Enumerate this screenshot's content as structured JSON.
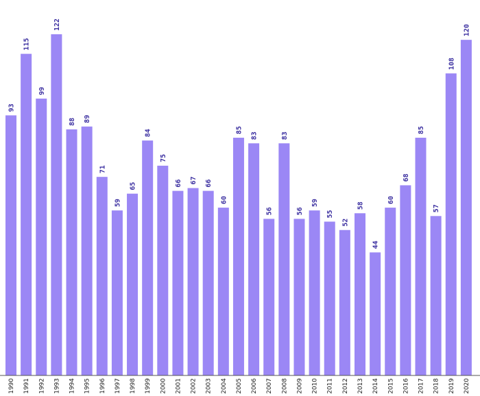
{
  "chart_data": {
    "type": "bar",
    "categories": [
      "1990",
      "1991",
      "1992",
      "1993",
      "1994",
      "1995",
      "1996",
      "1997",
      "1998",
      "1999",
      "2000",
      "2001",
      "2002",
      "2003",
      "2004",
      "2005",
      "2006",
      "2007",
      "2008",
      "2009",
      "2010",
      "2011",
      "2012",
      "2013",
      "2014",
      "2015",
      "2016",
      "2017",
      "2018",
      "2019",
      "2020"
    ],
    "values": [
      93,
      115,
      99,
      122,
      88,
      89,
      71,
      59,
      65,
      84,
      75,
      66,
      67,
      66,
      60,
      85,
      83,
      56,
      83,
      56,
      59,
      55,
      52,
      58,
      44,
      60,
      68,
      85,
      57,
      108,
      120
    ],
    "title": "",
    "xlabel": "",
    "ylabel": "",
    "ylim": [
      0,
      127
    ],
    "grid": false,
    "legend": "none",
    "data_labels": true,
    "bar_color": "#9b87f5",
    "label_color": "#3b2fa0"
  }
}
